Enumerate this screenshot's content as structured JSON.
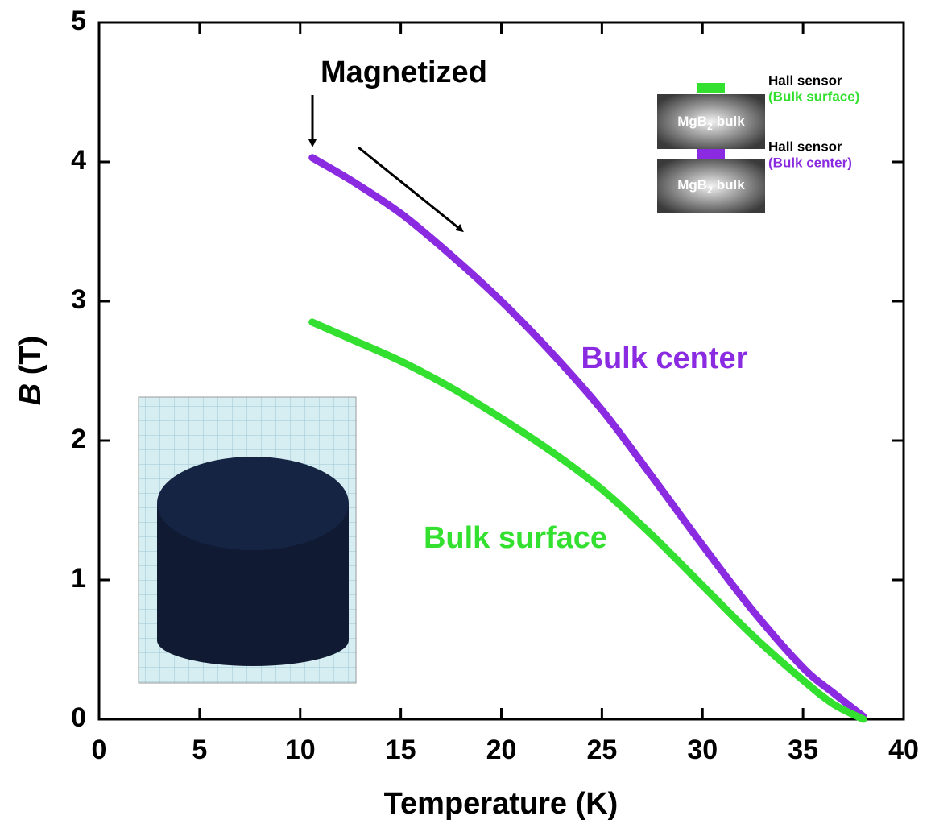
{
  "chart_data": {
    "type": "line",
    "x_label": "Temperature (K)",
    "y_label": {
      "symbol": "B",
      "unit": "(T)"
    },
    "x": [
      10.6,
      12.5,
      15,
      17.5,
      20,
      22.5,
      25,
      27.5,
      30,
      32.5,
      35,
      36.5,
      38
    ],
    "series": [
      {
        "name": "Bulk center",
        "color": "#8a2be2",
        "values": [
          4.03,
          3.87,
          3.63,
          3.33,
          3.0,
          2.63,
          2.22,
          1.74,
          1.25,
          0.78,
          0.37,
          0.19,
          0.02
        ]
      },
      {
        "name": "Bulk surface",
        "color": "#33e02f",
        "values": [
          2.85,
          2.73,
          2.57,
          2.38,
          2.16,
          1.92,
          1.65,
          1.32,
          0.96,
          0.6,
          0.28,
          0.11,
          0.0
        ]
      }
    ],
    "xlim": [
      0,
      40
    ],
    "xticks": [
      0,
      5,
      10,
      15,
      20,
      25,
      30,
      35,
      40
    ],
    "ylim": [
      0,
      5
    ],
    "yticks": [
      0,
      1,
      2,
      3,
      4,
      5
    ],
    "annotations": {
      "magnetized": "Magnetized"
    },
    "inset": {
      "sensor_top": "Hall sensor",
      "sensor_top_note": "(Bulk surface)",
      "sensor_mid": "Hall sensor",
      "sensor_mid_note": "(Bulk center)",
      "bulk_label": {
        "formula": "MgB",
        "subscript": "2",
        "word": "bulk"
      }
    }
  }
}
